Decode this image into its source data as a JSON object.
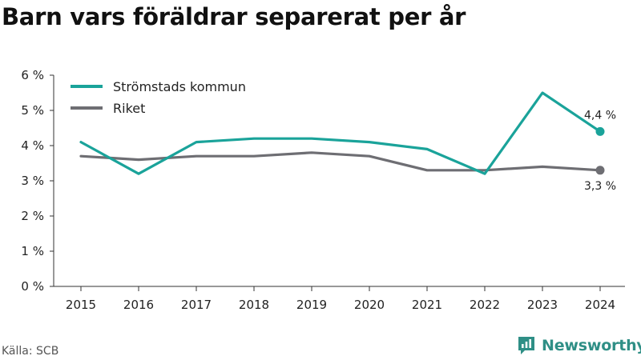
{
  "title": "Barn vars föräldrar separerat per år",
  "source": "Källa: SCB",
  "brand": "Newsworthy",
  "colors": {
    "stromstad": "#1aa39a",
    "riket": "#6e6e73",
    "brand": "#2f8f86",
    "axis": "#333333",
    "grid": "#d9d9d9"
  },
  "chart_data": {
    "type": "line",
    "title": "Barn vars föräldrar separerat per år",
    "x": [
      "2015",
      "2016",
      "2017",
      "2018",
      "2019",
      "2020",
      "2021",
      "2022",
      "2023",
      "2024"
    ],
    "ylim": [
      0,
      6
    ],
    "yticks": [
      "0 %",
      "1 %",
      "2 %",
      "3 %",
      "4 %",
      "5 %",
      "6 %"
    ],
    "grid": false,
    "legend": "top-left",
    "series": [
      {
        "name": "Strömstads kommun",
        "color": "#1aa39a",
        "values": [
          4.1,
          3.2,
          4.1,
          4.2,
          4.2,
          4.1,
          3.9,
          3.2,
          5.5,
          4.4
        ],
        "end_label": "4,4 %"
      },
      {
        "name": "Riket",
        "color": "#6e6e73",
        "values": [
          3.7,
          3.6,
          3.7,
          3.7,
          3.8,
          3.7,
          3.3,
          3.3,
          3.4,
          3.3
        ],
        "end_label": "3,3 %"
      }
    ]
  }
}
